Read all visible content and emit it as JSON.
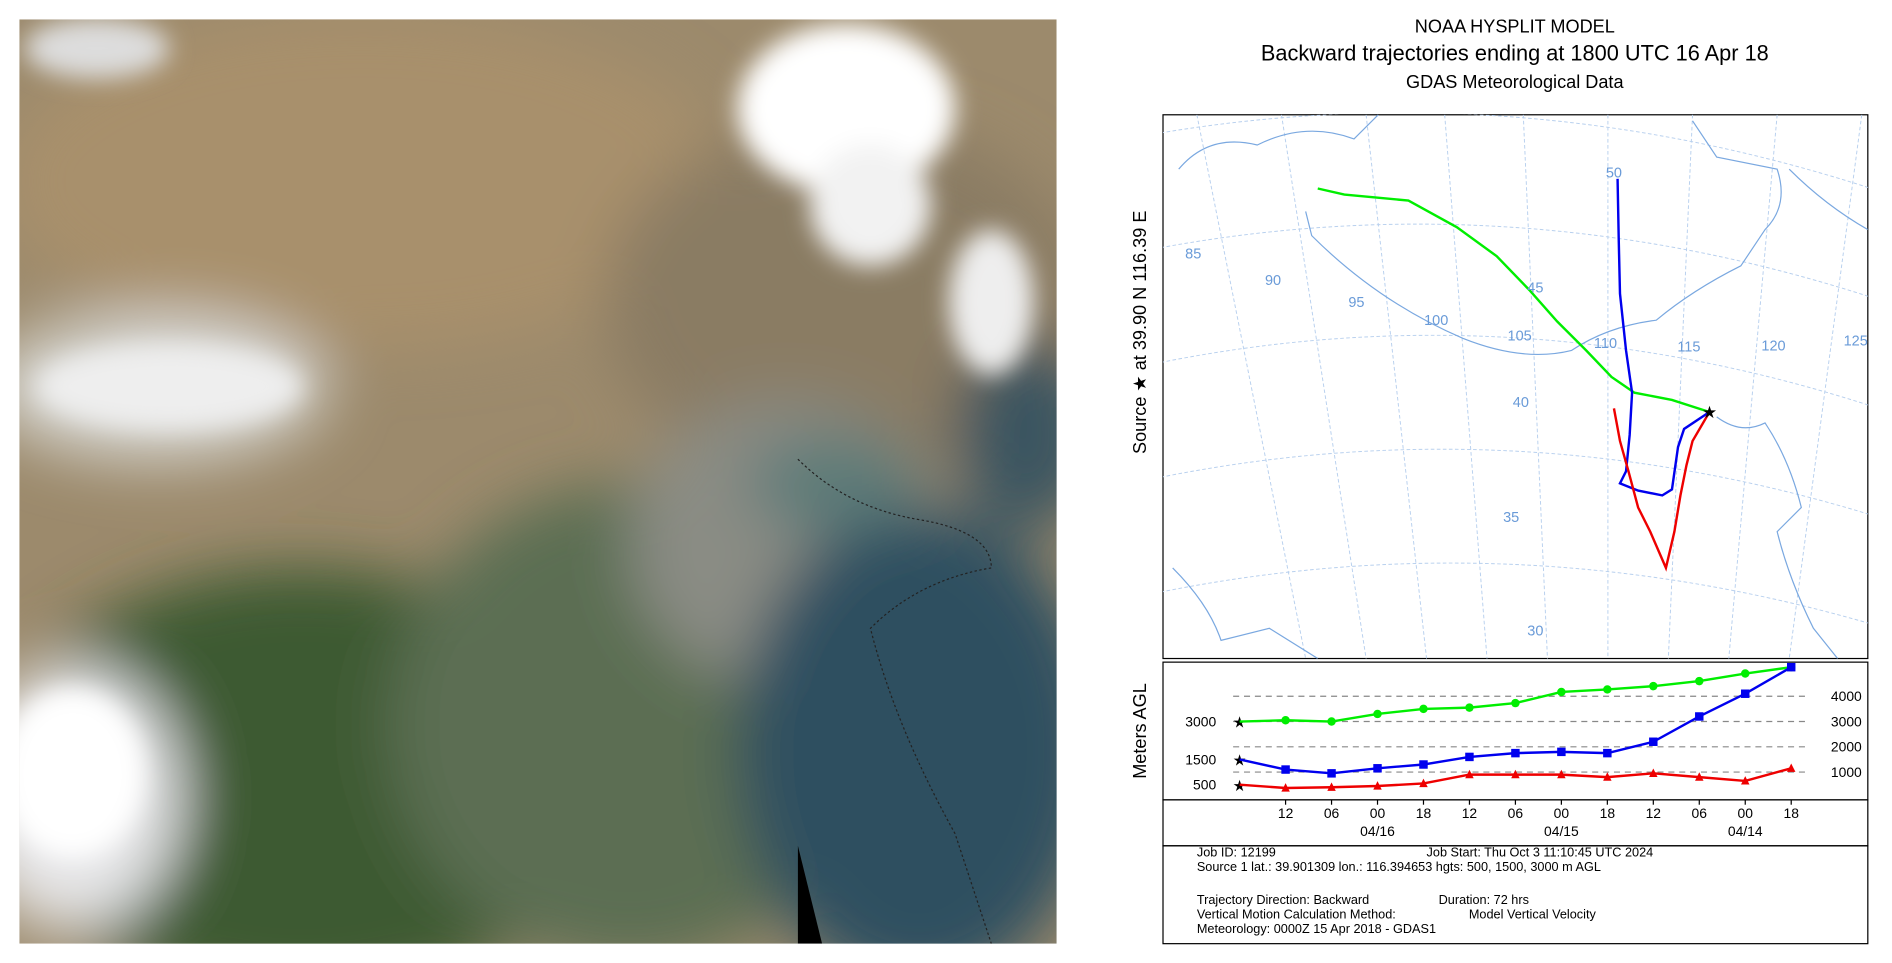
{
  "header": {
    "title": "NOAA HYSPLIT MODEL",
    "subtitle": "Backward trajectories ending at 1800 UTC 16 Apr 18",
    "source": "GDAS Meteorological Data"
  },
  "map": {
    "y_label": "Source ★ at   39.90 N  116.39 E",
    "lat_labels": [
      "50",
      "45",
      "40",
      "35",
      "30"
    ],
    "lon_labels": [
      "85",
      "90",
      "95",
      "100",
      "105",
      "110",
      "115",
      "120",
      "125"
    ]
  },
  "chart_data": {
    "type": "line",
    "y_label": "Meters AGL",
    "x": [
      0,
      6,
      12,
      18,
      24,
      30,
      36,
      42,
      48,
      54,
      60,
      66,
      72
    ],
    "xlim": [
      -10,
      82
    ],
    "xticks": [
      {
        "value": 6,
        "label": "12"
      },
      {
        "value": 12,
        "label": "06"
      },
      {
        "value": 18,
        "label": "00"
      },
      {
        "value": 24,
        "label": "18"
      },
      {
        "value": 30,
        "label": "12"
      },
      {
        "value": 36,
        "label": "06"
      },
      {
        "value": 42,
        "label": "00"
      },
      {
        "value": 48,
        "label": "18"
      },
      {
        "value": 54,
        "label": "12"
      },
      {
        "value": 60,
        "label": "06"
      },
      {
        "value": 66,
        "label": "00"
      },
      {
        "value": 72,
        "label": "18"
      }
    ],
    "x_date_labels": [
      {
        "value": 18,
        "label": "04/16"
      },
      {
        "value": 42,
        "label": "04/15"
      },
      {
        "value": 66,
        "label": "04/14"
      }
    ],
    "ylim": [
      -100,
      5350
    ],
    "yticks": [
      1000,
      2000,
      3000,
      4000
    ],
    "grid": true,
    "start_heights": [
      500,
      1500,
      3000
    ],
    "series": [
      {
        "color": "#00ee00",
        "marker": "circle",
        "values": [
          3000,
          3050,
          3000,
          3300,
          3500,
          3550,
          3730,
          4170,
          4270,
          4400,
          4600,
          4900,
          5150
        ]
      },
      {
        "color": "#0000ee",
        "marker": "square",
        "values": [
          1500,
          1100,
          950,
          1150,
          1300,
          1600,
          1750,
          1800,
          1750,
          2200,
          3200,
          4100,
          5150
        ]
      },
      {
        "color": "#ee0000",
        "marker": "triangle",
        "values": [
          500,
          370,
          400,
          450,
          550,
          900,
          900,
          900,
          800,
          950,
          800,
          650,
          1150
        ]
      }
    ]
  },
  "footer": [
    "Job ID: 12199",
    "Job Start: Thu Oct  3 11:10:45 UTC 2024",
    "Source 1 lat.: 39.901309  lon.: 116.394653  hgts: 500, 1500, 3000 m AGL",
    "Trajectory Direction: Backward",
    "Duration: 72 hrs",
    "Vertical Motion Calculation Method:",
    "Model Vertical Velocity",
    "Meteorology: 0000Z 15 Apr 2018 - GDAS1"
  ]
}
